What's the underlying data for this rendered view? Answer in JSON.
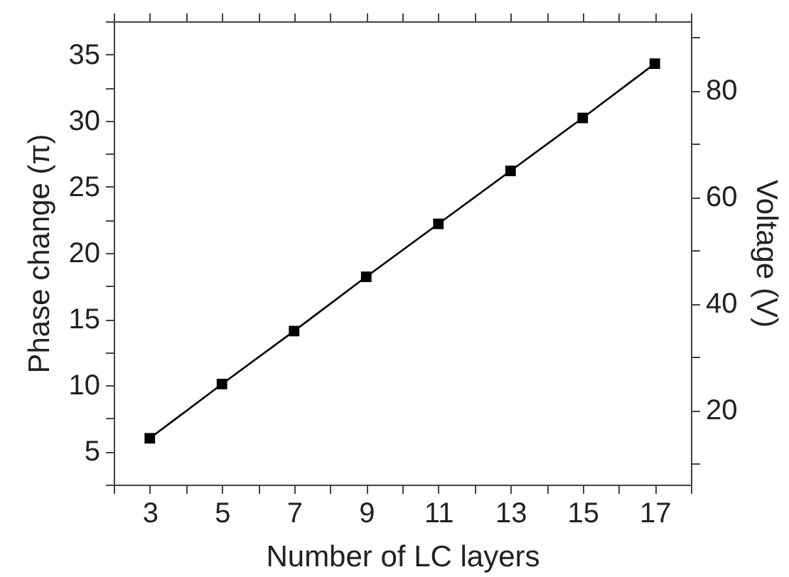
{
  "chart_data": {
    "type": "line",
    "xlabel": "Number of LC layers",
    "ylabel": "Phase change (π)",
    "y2label": "Voltage (V)",
    "x": [
      3,
      5,
      7,
      9,
      11,
      13,
      15,
      17
    ],
    "series": [
      {
        "color": "#000000",
        "values": [
          6.0,
          10.1,
          14.1,
          18.2,
          22.2,
          26.2,
          30.2,
          34.3
        ]
      }
    ],
    "line_style": "solid",
    "xlim": [
      2,
      18
    ],
    "xticks": [
      {
        "value": 2,
        "label": null
      },
      3,
      {
        "value": 4,
        "label": null
      },
      5,
      {
        "value": 6,
        "label": null
      },
      7,
      {
        "value": 8,
        "label": null
      },
      9,
      {
        "value": 10,
        "label": null
      },
      11,
      {
        "value": 12,
        "label": null
      },
      13,
      {
        "value": 14,
        "label": null
      },
      15,
      {
        "value": 16,
        "label": null
      },
      17,
      {
        "value": 18,
        "label": null
      }
    ],
    "ylim": [
      2.5,
      37.5
    ],
    "yticks": [
      {
        "value": 2.5,
        "label": null
      },
      5,
      {
        "value": 7.5,
        "label": null
      },
      10,
      {
        "value": 12.5,
        "label": null
      },
      15,
      {
        "value": 17.5,
        "label": null
      },
      20,
      {
        "value": 22.5,
        "label": null
      },
      25,
      {
        "value": 27.5,
        "label": null
      },
      30,
      {
        "value": 32.5,
        "label": null
      },
      35,
      {
        "value": 37.5,
        "label": null
      }
    ],
    "y2lim": [
      6,
      93
    ],
    "y2ticks": [
      {
        "value": 10,
        "label": null
      },
      20,
      {
        "value": 30,
        "label": null
      },
      40,
      {
        "value": 50,
        "label": null
      },
      60,
      {
        "value": 70,
        "label": null
      },
      80,
      {
        "value": 90,
        "label": null
      }
    ],
    "marker": "square"
  }
}
